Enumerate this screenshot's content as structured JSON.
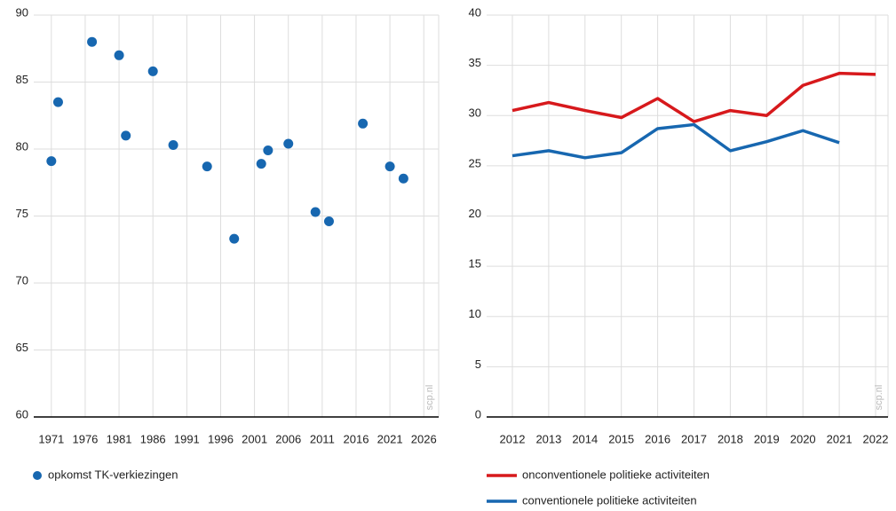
{
  "chart_data": [
    {
      "type": "scatter",
      "watermark": "scp.nl",
      "series": [
        {
          "name": "opkomst TK-verkiezingen",
          "color": "#1767b0",
          "x": [
            1971,
            1972,
            1977,
            1981,
            1982,
            1986,
            1989,
            1994,
            1998,
            2002,
            2003,
            2006,
            2010,
            2012,
            2017,
            2021,
            2023
          ],
          "values": [
            79.1,
            83.5,
            88.0,
            87.0,
            81.0,
            85.8,
            80.3,
            78.7,
            73.3,
            78.9,
            79.9,
            80.4,
            75.3,
            74.6,
            81.9,
            78.7,
            77.8
          ]
        }
      ],
      "xlim": [
        1968.4,
        2028.2
      ],
      "xticks": [
        1971,
        1976,
        1981,
        1986,
        1991,
        1996,
        2001,
        2006,
        2011,
        2016,
        2021,
        2026
      ],
      "ylim": [
        60,
        90
      ],
      "yticks": [
        60,
        65,
        70,
        75,
        80,
        85,
        90
      ],
      "grid": true
    },
    {
      "type": "line",
      "watermark": "scp.nl",
      "categories": [
        "2012",
        "2013",
        "2014",
        "2015",
        "2016",
        "2017",
        "2018",
        "2019",
        "2020",
        "2021",
        "2022"
      ],
      "series": [
        {
          "name": "onconventionele politieke activiteiten",
          "color": "#d7191c",
          "values": [
            30.5,
            31.3,
            30.5,
            29.8,
            31.7,
            29.4,
            30.5,
            30.0,
            33.0,
            34.2,
            34.1
          ]
        },
        {
          "name": "conventionele politieke activiteiten",
          "color": "#1767b0",
          "values": [
            26.0,
            26.5,
            25.8,
            26.3,
            28.7,
            29.1,
            26.5,
            27.4,
            28.5,
            27.3,
            null
          ]
        }
      ],
      "ylim": [
        0,
        40
      ],
      "yticks": [
        0,
        5,
        10,
        15,
        20,
        25,
        30,
        35,
        40
      ],
      "grid": true
    }
  ]
}
